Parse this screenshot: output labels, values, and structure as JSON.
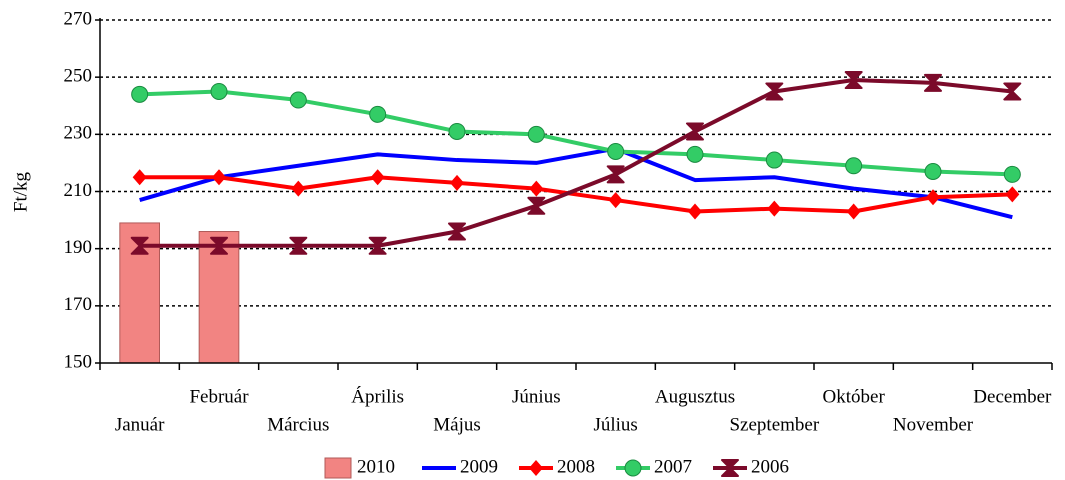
{
  "chart_data": {
    "type": "line",
    "y_label": "Ft/kg",
    "categories": [
      "Január",
      "Február",
      "Március",
      "Április",
      "Május",
      "Június",
      "Július",
      "Augusztus",
      "Szeptember",
      "Október",
      "November",
      "December"
    ],
    "ylim": [
      150,
      270
    ],
    "yticks": [
      150,
      170,
      190,
      210,
      230,
      250,
      270
    ],
    "grid": true,
    "legend": "bottom",
    "series": [
      {
        "name": "2010",
        "type": "bar",
        "color": "#f28482",
        "values": [
          199,
          196,
          null,
          null,
          null,
          null,
          null,
          null,
          null,
          null,
          null,
          null
        ]
      },
      {
        "name": "2009",
        "type": "line",
        "color": "#0000ff",
        "values": [
          207,
          215,
          219,
          223,
          221,
          220,
          225,
          214,
          215,
          211,
          208,
          201
        ]
      },
      {
        "name": "2008",
        "type": "line",
        "color": "#ff0000",
        "marker": "diamond",
        "values": [
          215,
          215,
          211,
          215,
          213,
          211,
          207,
          203,
          204,
          203,
          208,
          209
        ]
      },
      {
        "name": "2007",
        "type": "line",
        "color": "#33cc66",
        "marker": "circle",
        "values": [
          244,
          245,
          242,
          237,
          231,
          230,
          224,
          223,
          221,
          219,
          217,
          216
        ]
      },
      {
        "name": "2006",
        "type": "line",
        "color": "#7b0a2a",
        "marker": "hourglass",
        "values": [
          191,
          191,
          191,
          191,
          196,
          205,
          216,
          231,
          245,
          249,
          248,
          245
        ]
      }
    ]
  }
}
